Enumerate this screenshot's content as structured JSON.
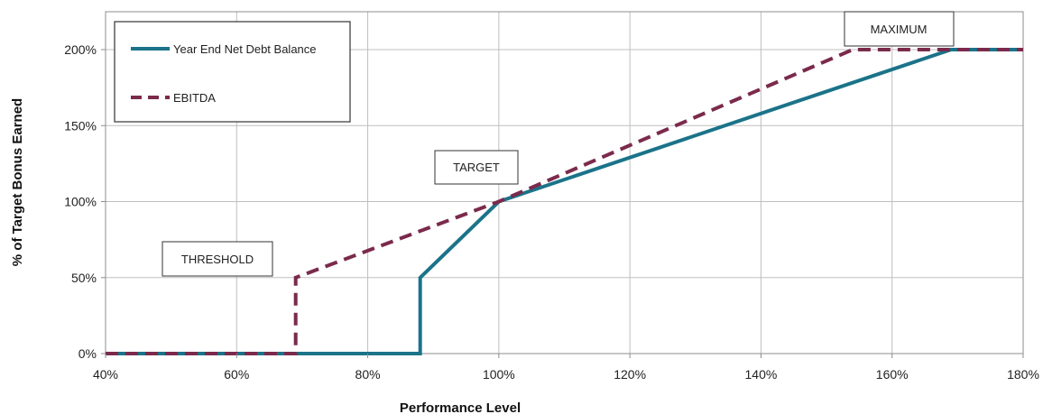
{
  "chart_data": {
    "type": "line",
    "xlabel": "Performance Level",
    "ylabel": "% of Target Bonus Earned",
    "xlim": [
      40,
      180
    ],
    "ylim": [
      0,
      200
    ],
    "x_ticks": [
      40,
      60,
      80,
      100,
      120,
      140,
      160,
      180
    ],
    "y_ticks": [
      0,
      50,
      100,
      150,
      200
    ],
    "x_tick_labels": [
      "40%",
      "60%",
      "80%",
      "100%",
      "120%",
      "140%",
      "160%",
      "180%"
    ],
    "y_tick_labels": [
      "0%",
      "50%",
      "100%",
      "150%",
      "200%"
    ],
    "grid": true,
    "legend_position": "top-left",
    "series": [
      {
        "name": "Year End Net Debt Balance",
        "color": "#1b7389",
        "style": "solid",
        "points": [
          [
            40,
            0
          ],
          [
            88,
            0
          ],
          [
            88,
            50
          ],
          [
            100,
            100
          ],
          [
            169,
            200
          ],
          [
            180,
            200
          ]
        ]
      },
      {
        "name": "EBITDA",
        "color": "#7b2a4c",
        "style": "dashed",
        "points": [
          [
            40,
            0
          ],
          [
            69,
            0
          ],
          [
            69,
            50
          ],
          [
            100,
            100
          ],
          [
            154,
            200
          ],
          [
            180,
            200
          ]
        ]
      }
    ],
    "annotations": [
      {
        "text": "THRESHOLD"
      },
      {
        "text": "TARGET"
      },
      {
        "text": "MAXIMUM"
      }
    ]
  }
}
